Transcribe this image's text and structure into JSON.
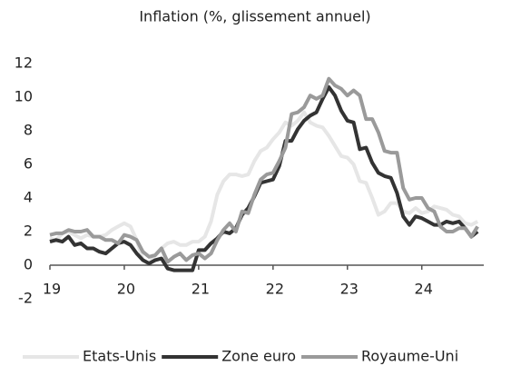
{
  "chart_data": {
    "type": "line",
    "title": "Inflation (%, glissement annuel)",
    "x": [
      0,
      1,
      2,
      3,
      4,
      5,
      6,
      7,
      8,
      9,
      10,
      11,
      12,
      13,
      14,
      15,
      16,
      17,
      18,
      19,
      20,
      21,
      22,
      23,
      24,
      25,
      26,
      27,
      28,
      29,
      30,
      31,
      32,
      33,
      34,
      35,
      36,
      37,
      38,
      39,
      40,
      41,
      42,
      43,
      44,
      45,
      46,
      47,
      48,
      49,
      50,
      51,
      52,
      53,
      54,
      55,
      56,
      57,
      58,
      59,
      60,
      61,
      62,
      63,
      64,
      65,
      66,
      67,
      68,
      69
    ],
    "xlim": [
      0,
      70
    ],
    "xticks": [
      {
        "value": 0,
        "label": "19"
      },
      {
        "value": 12,
        "label": "20"
      },
      {
        "value": 24,
        "label": "21"
      },
      {
        "value": 36,
        "label": "22"
      },
      {
        "value": 48,
        "label": "23"
      },
      {
        "value": 60,
        "label": "24"
      }
    ],
    "ylim": [
      -2,
      12
    ],
    "yticks": [
      -2,
      0,
      2,
      4,
      6,
      8,
      10,
      12
    ],
    "grid": false,
    "legend": "bottom",
    "series": [
      {
        "name": "Etats-Unis",
        "color": "#e6e6e6",
        "values": [
          1.6,
          1.5,
          1.9,
          2.0,
          1.8,
          1.6,
          1.8,
          1.7,
          1.7,
          1.8,
          2.1,
          2.3,
          2.5,
          2.3,
          1.5,
          0.3,
          0.1,
          0.6,
          1.0,
          1.3,
          1.4,
          1.2,
          1.2,
          1.4,
          1.4,
          1.7,
          2.6,
          4.2,
          5.0,
          5.4,
          5.4,
          5.3,
          5.4,
          6.2,
          6.8,
          7.0,
          7.5,
          7.9,
          8.5,
          8.3,
          8.6,
          9.1,
          8.5,
          8.3,
          8.2,
          7.7,
          7.1,
          6.5,
          6.4,
          6.0,
          5.0,
          4.9,
          4.0,
          3.0,
          3.2,
          3.7,
          3.7,
          3.2,
          3.1,
          3.4,
          3.1,
          3.2,
          3.5,
          3.4,
          3.3,
          3.0,
          2.9,
          2.5,
          2.4,
          2.6
        ]
      },
      {
        "name": "Zone euro",
        "color": "#333333",
        "values": [
          1.4,
          1.5,
          1.4,
          1.7,
          1.2,
          1.3,
          1.0,
          1.0,
          0.8,
          0.7,
          1.0,
          1.3,
          1.4,
          1.2,
          0.7,
          0.3,
          0.1,
          0.3,
          0.4,
          -0.2,
          -0.3,
          -0.3,
          -0.3,
          -0.3,
          0.9,
          0.9,
          1.3,
          1.6,
          2.0,
          1.9,
          2.2,
          3.0,
          3.4,
          4.1,
          4.9,
          5.0,
          5.1,
          5.9,
          7.4,
          7.4,
          8.1,
          8.6,
          8.9,
          9.1,
          9.9,
          10.6,
          10.1,
          9.2,
          8.6,
          8.5,
          6.9,
          7.0,
          6.1,
          5.5,
          5.3,
          5.2,
          4.3,
          2.9,
          2.4,
          2.9,
          2.8,
          2.6,
          2.4,
          2.4,
          2.6,
          2.5,
          2.6,
          2.2,
          1.7,
          2.0
        ]
      },
      {
        "name": "Royaume-Uni",
        "color": "#9a9a9a",
        "values": [
          1.8,
          1.9,
          1.9,
          2.1,
          2.0,
          2.0,
          2.1,
          1.7,
          1.7,
          1.5,
          1.5,
          1.3,
          1.8,
          1.7,
          1.5,
          0.8,
          0.5,
          0.6,
          1.0,
          0.2,
          0.5,
          0.7,
          0.3,
          0.6,
          0.7,
          0.4,
          0.7,
          1.5,
          2.1,
          2.5,
          2.0,
          3.2,
          3.1,
          4.2,
          5.1,
          5.4,
          5.5,
          6.2,
          7.0,
          9.0,
          9.1,
          9.4,
          10.1,
          9.9,
          10.1,
          11.1,
          10.7,
          10.5,
          10.1,
          10.4,
          10.1,
          8.7,
          8.7,
          7.9,
          6.8,
          6.7,
          6.7,
          4.6,
          3.9,
          4.0,
          4.0,
          3.4,
          3.2,
          2.3,
          2.0,
          2.0,
          2.2,
          2.2,
          1.7,
          2.3
        ]
      }
    ]
  }
}
